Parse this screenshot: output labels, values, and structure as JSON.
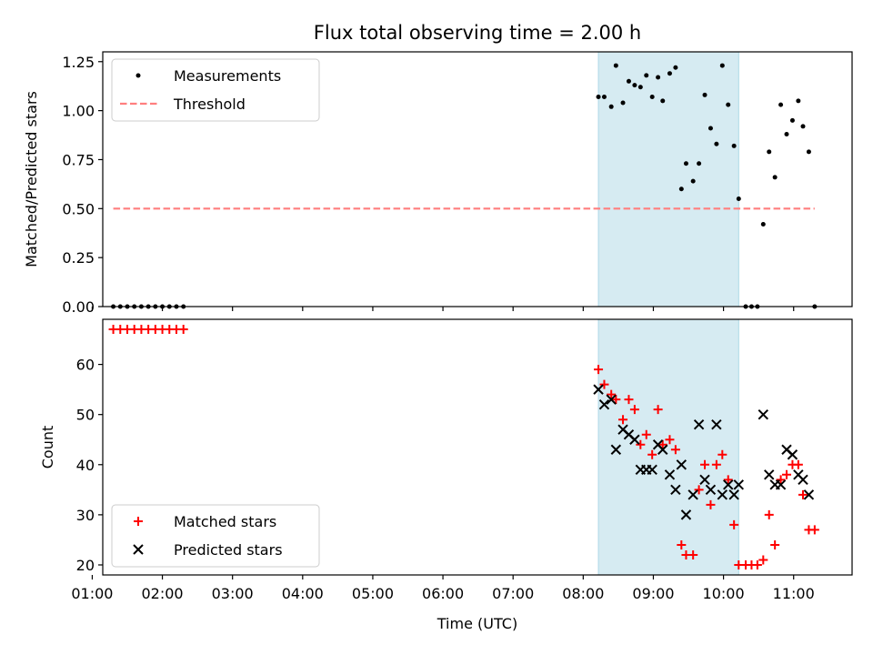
{
  "figure_title": "Flux total observing time = 2.00 h",
  "chart_data": [
    {
      "type": "scatter",
      "ylabel": "Matched/Predicted stars",
      "ylim": [
        0,
        1.3
      ],
      "yticks": [
        "0.00",
        "0.25",
        "0.50",
        "0.75",
        "1.00",
        "1.25"
      ],
      "ytick_values": [
        0,
        0.25,
        0.5,
        0.75,
        1.0,
        1.25
      ],
      "xlim": [
        "01:09",
        "11:50"
      ],
      "legend": {
        "placement": "top-left",
        "entries": [
          "Measurements",
          "Threshold"
        ]
      },
      "shaded_interval": {
        "start": "08:13",
        "end": "10:13",
        "color": "#add8e6"
      },
      "threshold": {
        "name": "Threshold",
        "value": 0.5,
        "x_start": "01:18",
        "x_end": "11:18",
        "color": "#ff7f7f",
        "style": "dashed"
      },
      "series": [
        {
          "name": "Measurements",
          "color": "#000000",
          "points": [
            [
              "01:18",
              0
            ],
            [
              "01:24",
              0
            ],
            [
              "01:30",
              0
            ],
            [
              "01:36",
              0
            ],
            [
              "01:42",
              0
            ],
            [
              "01:48",
              0
            ],
            [
              "01:54",
              0
            ],
            [
              "02:00",
              0
            ],
            [
              "02:06",
              0
            ],
            [
              "02:12",
              0
            ],
            [
              "02:18",
              0
            ],
            [
              "08:13",
              1.07
            ],
            [
              "08:18",
              1.07
            ],
            [
              "08:24",
              1.02
            ],
            [
              "08:28",
              1.23
            ],
            [
              "08:34",
              1.04
            ],
            [
              "08:39",
              1.15
            ],
            [
              "08:44",
              1.13
            ],
            [
              "08:49",
              1.12
            ],
            [
              "08:54",
              1.18
            ],
            [
              "08:59",
              1.07
            ],
            [
              "09:04",
              1.17
            ],
            [
              "09:08",
              1.05
            ],
            [
              "09:14",
              1.19
            ],
            [
              "09:19",
              1.22
            ],
            [
              "09:24",
              0.6
            ],
            [
              "09:28",
              0.73
            ],
            [
              "09:34",
              0.64
            ],
            [
              "09:39",
              0.73
            ],
            [
              "09:44",
              1.08
            ],
            [
              "09:49",
              0.91
            ],
            [
              "09:54",
              0.83
            ],
            [
              "09:59",
              1.23
            ],
            [
              "10:04",
              1.03
            ],
            [
              "10:09",
              0.82
            ],
            [
              "10:13",
              0.55
            ],
            [
              "10:19",
              0
            ],
            [
              "10:24",
              0
            ],
            [
              "10:29",
              0
            ],
            [
              "10:34",
              0.42
            ],
            [
              "10:39",
              0.79
            ],
            [
              "10:44",
              0.66
            ],
            [
              "10:49",
              1.03
            ],
            [
              "10:54",
              0.88
            ],
            [
              "10:59",
              0.95
            ],
            [
              "11:04",
              1.05
            ],
            [
              "11:08",
              0.92
            ],
            [
              "11:13",
              0.79
            ],
            [
              "11:18",
              0
            ]
          ]
        }
      ]
    },
    {
      "type": "scatter",
      "xlabel": "Time (UTC)",
      "ylabel": "Count",
      "ylim": [
        18,
        69
      ],
      "yticks": [
        "20",
        "30",
        "40",
        "50",
        "60"
      ],
      "ytick_values": [
        20,
        30,
        40,
        50,
        60
      ],
      "xlim": [
        "01:09",
        "11:50"
      ],
      "xticks": [
        "01:00",
        "02:00",
        "03:00",
        "04:00",
        "05:00",
        "06:00",
        "07:00",
        "08:00",
        "09:00",
        "10:00",
        "11:00"
      ],
      "legend": {
        "placement": "bottom-left",
        "entries": [
          "Matched stars",
          "Predicted stars"
        ]
      },
      "shaded_interval": {
        "start": "08:13",
        "end": "10:13",
        "color": "#add8e6"
      },
      "series": [
        {
          "name": "Matched stars",
          "marker": "+",
          "color": "#ff0000",
          "points": [
            [
              "01:18",
              67
            ],
            [
              "01:24",
              67
            ],
            [
              "01:30",
              67
            ],
            [
              "01:36",
              67
            ],
            [
              "01:42",
              67
            ],
            [
              "01:48",
              67
            ],
            [
              "01:54",
              67
            ],
            [
              "02:00",
              67
            ],
            [
              "02:06",
              67
            ],
            [
              "02:12",
              67
            ],
            [
              "02:18",
              67
            ],
            [
              "08:13",
              59
            ],
            [
              "08:18",
              56
            ],
            [
              "08:24",
              54
            ],
            [
              "08:28",
              53
            ],
            [
              "08:34",
              49
            ],
            [
              "08:39",
              53
            ],
            [
              "08:44",
              51
            ],
            [
              "08:49",
              44
            ],
            [
              "08:54",
              46
            ],
            [
              "08:59",
              42
            ],
            [
              "09:04",
              51
            ],
            [
              "09:08",
              44
            ],
            [
              "09:14",
              45
            ],
            [
              "09:19",
              43
            ],
            [
              "09:24",
              24
            ],
            [
              "09:28",
              22
            ],
            [
              "09:34",
              22
            ],
            [
              "09:39",
              35
            ],
            [
              "09:44",
              40
            ],
            [
              "09:49",
              32
            ],
            [
              "09:54",
              40
            ],
            [
              "09:59",
              42
            ],
            [
              "10:04",
              37
            ],
            [
              "10:09",
              28
            ],
            [
              "10:13",
              20
            ],
            [
              "10:19",
              20
            ],
            [
              "10:24",
              20
            ],
            [
              "10:29",
              20
            ],
            [
              "10:34",
              21
            ],
            [
              "10:39",
              30
            ],
            [
              "10:44",
              24
            ],
            [
              "10:49",
              37
            ],
            [
              "10:54",
              38
            ],
            [
              "10:59",
              40
            ],
            [
              "11:04",
              40
            ],
            [
              "11:08",
              34
            ],
            [
              "11:13",
              27
            ],
            [
              "11:18",
              27
            ]
          ]
        },
        {
          "name": "Predicted stars",
          "marker": "x",
          "color": "#000000",
          "points": [
            [
              "08:13",
              55
            ],
            [
              "08:18",
              52
            ],
            [
              "08:24",
              53
            ],
            [
              "08:28",
              43
            ],
            [
              "08:34",
              47
            ],
            [
              "08:39",
              46
            ],
            [
              "08:44",
              45
            ],
            [
              "08:49",
              39
            ],
            [
              "08:54",
              39
            ],
            [
              "08:59",
              39
            ],
            [
              "09:04",
              44
            ],
            [
              "09:08",
              43
            ],
            [
              "09:14",
              38
            ],
            [
              "09:19",
              35
            ],
            [
              "09:24",
              40
            ],
            [
              "09:28",
              30
            ],
            [
              "09:34",
              34
            ],
            [
              "09:39",
              48
            ],
            [
              "09:44",
              37
            ],
            [
              "09:49",
              35
            ],
            [
              "09:54",
              48
            ],
            [
              "09:59",
              34
            ],
            [
              "10:04",
              36
            ],
            [
              "10:09",
              34
            ],
            [
              "10:13",
              36
            ],
            [
              "10:34",
              50
            ],
            [
              "10:39",
              38
            ],
            [
              "10:44",
              36
            ],
            [
              "10:49",
              36
            ],
            [
              "10:54",
              43
            ],
            [
              "10:59",
              42
            ],
            [
              "11:04",
              38
            ],
            [
              "11:08",
              37
            ],
            [
              "11:13",
              34
            ]
          ]
        }
      ]
    }
  ]
}
